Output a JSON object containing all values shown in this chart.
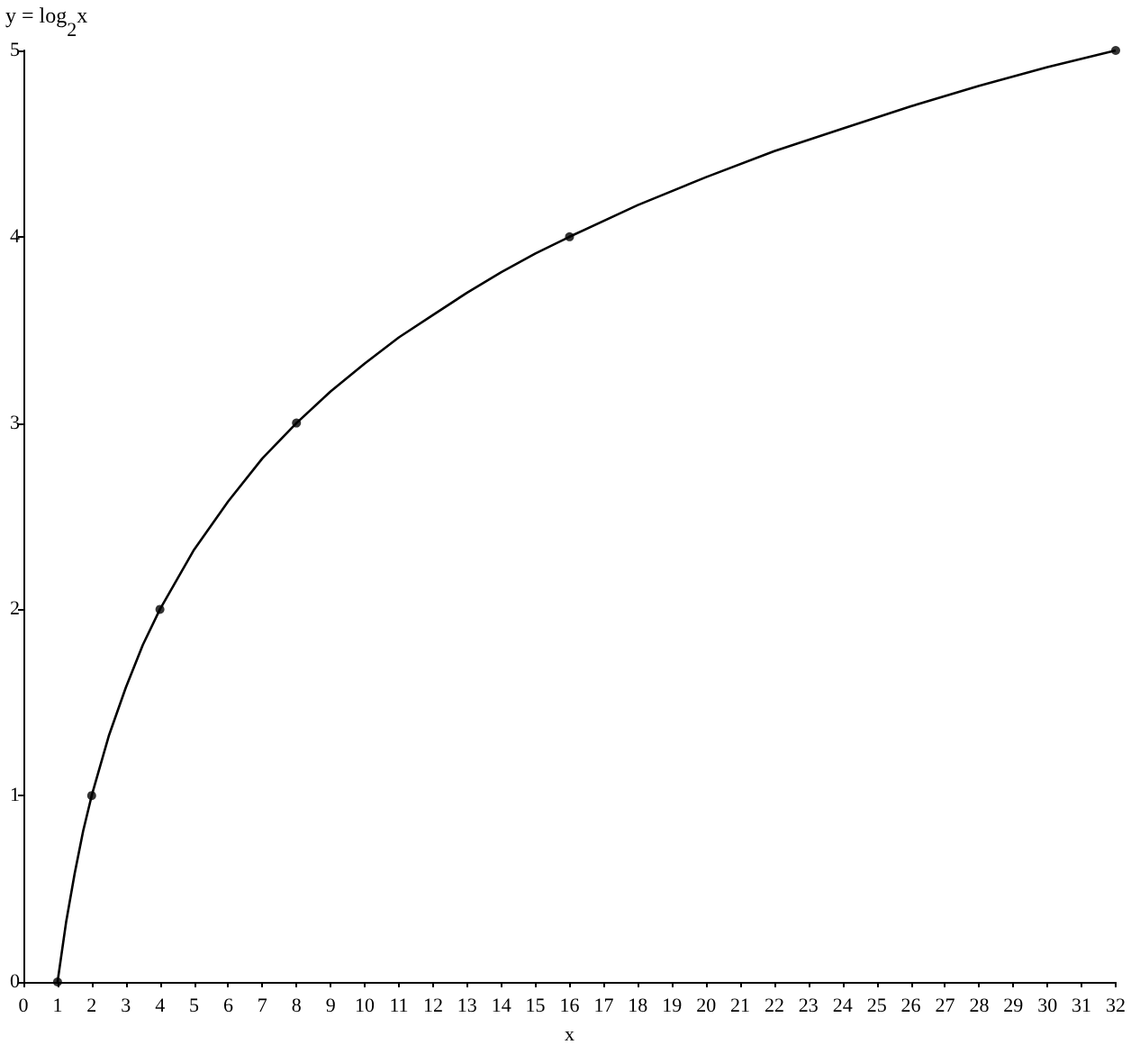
{
  "chart_data": {
    "type": "line",
    "xlabel": "x",
    "ylabel": "y = log$_{2}$x",
    "series": [
      {
        "color": "#000000",
        "marker": "none",
        "x": [
          1,
          1.25,
          1.5,
          1.75,
          2,
          2.5,
          3,
          3.5,
          4,
          5,
          6,
          7,
          8,
          9,
          10,
          11,
          12,
          13,
          14,
          15,
          16,
          18,
          20,
          22,
          24,
          26,
          28,
          30,
          32
        ],
        "values": [
          0,
          0.32,
          0.58,
          0.81,
          1,
          1.32,
          1.58,
          1.81,
          2,
          2.32,
          2.58,
          2.81,
          3,
          3.17,
          3.32,
          3.46,
          3.58,
          3.7,
          3.81,
          3.91,
          4,
          4.17,
          4.32,
          4.46,
          4.58,
          4.7,
          4.81,
          4.91,
          5
        ]
      },
      {
        "type": "scatter",
        "marker": "circle",
        "color": "#000000",
        "x": [
          1,
          2,
          4,
          8,
          16,
          32
        ],
        "values": [
          0,
          1,
          2,
          3,
          4,
          5
        ]
      }
    ],
    "xlim": [
      0,
      32
    ],
    "xticks": [
      0,
      1,
      2,
      3,
      4,
      5,
      6,
      7,
      8,
      9,
      10,
      11,
      12,
      13,
      14,
      15,
      16,
      17,
      18,
      19,
      20,
      21,
      22,
      23,
      24,
      25,
      26,
      27,
      28,
      29,
      30,
      31,
      32
    ],
    "ylim": [
      0,
      5
    ],
    "yticks": [
      0,
      1,
      2,
      3,
      4,
      5
    ],
    "grid": false,
    "line_style": "solid"
  }
}
